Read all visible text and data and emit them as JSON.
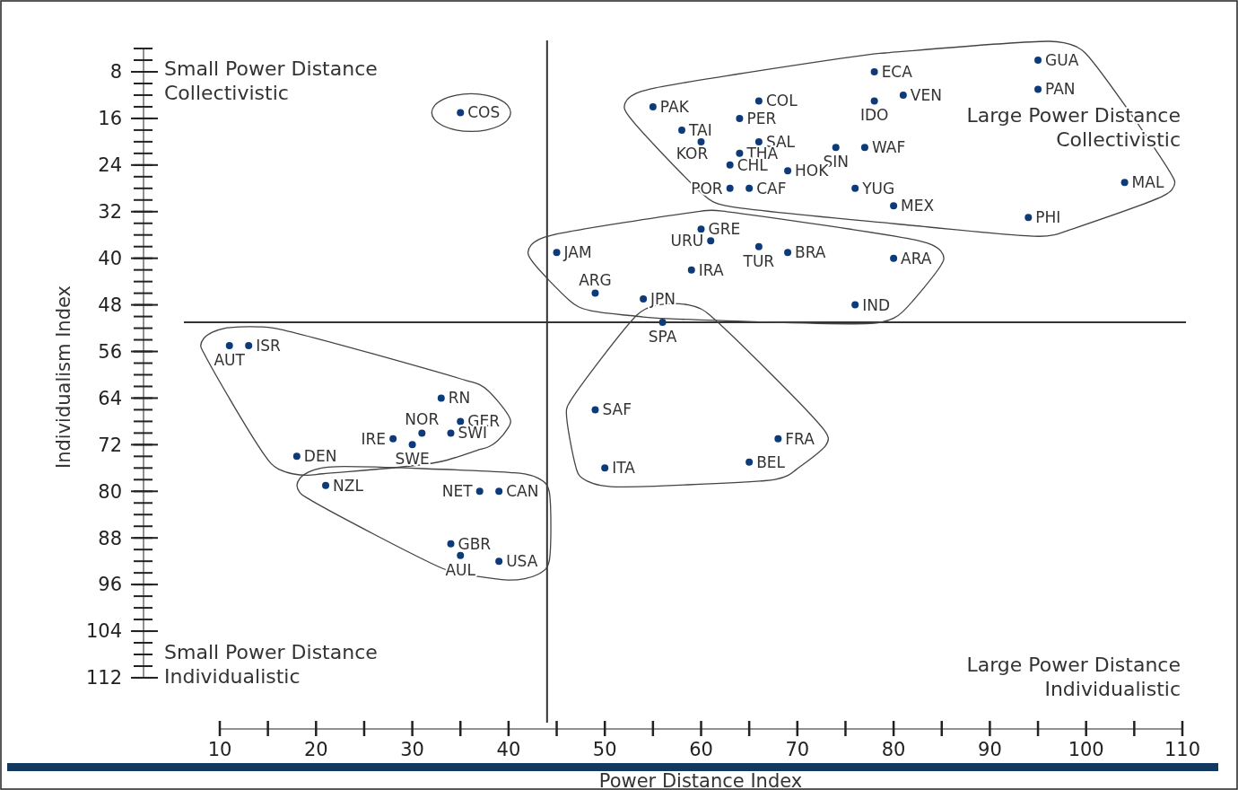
{
  "chart_data": {
    "type": "scatter",
    "xlabel": "Power Distance Index",
    "ylabel": "Individualism Index",
    "xlim": [
      10,
      110
    ],
    "ylim": [
      112,
      4
    ],
    "xticks": [
      10,
      20,
      30,
      40,
      50,
      60,
      70,
      80,
      90,
      100,
      110
    ],
    "yticks": [
      8,
      16,
      24,
      32,
      40,
      48,
      56,
      64,
      72,
      80,
      88,
      96,
      104,
      112
    ],
    "grid": false,
    "marker": "circle",
    "ref_lines": [
      {
        "axis": "x",
        "value": 44,
        "label": null,
        "color": "#333333"
      },
      {
        "axis": "y",
        "value": 51,
        "label": null,
        "color": "#333333"
      }
    ],
    "annotations": [
      "Small Power Distance\nCollectivistic",
      "Large Power Distance\nCollectivistic",
      "Small Power Distance\nIndividualistic",
      "Large Power Distance\nIndividualistic"
    ],
    "series": [
      {
        "name": "GUA",
        "color": "#0d3b7a",
        "x": [
          95
        ],
        "values": [
          6
        ]
      },
      {
        "name": "PAN",
        "color": "#0d3b7a",
        "x": [
          95
        ],
        "values": [
          11
        ]
      },
      {
        "name": "ECA",
        "color": "#0d3b7a",
        "x": [
          78
        ],
        "values": [
          8
        ]
      },
      {
        "name": "VEN",
        "color": "#0d3b7a",
        "x": [
          81
        ],
        "values": [
          12
        ]
      },
      {
        "name": "IDO",
        "color": "#0d3b7a",
        "x": [
          78
        ],
        "values": [
          13
        ]
      },
      {
        "name": "COL",
        "color": "#0d3b7a",
        "x": [
          66
        ],
        "values": [
          13
        ]
      },
      {
        "name": "PAK",
        "color": "#0d3b7a",
        "x": [
          55
        ],
        "values": [
          14
        ]
      },
      {
        "name": "COS",
        "color": "#0d3b7a",
        "x": [
          35
        ],
        "values": [
          15
        ]
      },
      {
        "name": "PER",
        "color": "#0d3b7a",
        "x": [
          64
        ],
        "values": [
          16
        ]
      },
      {
        "name": "TAI",
        "color": "#0d3b7a",
        "x": [
          58
        ],
        "values": [
          18
        ]
      },
      {
        "name": "SAL",
        "color": "#0d3b7a",
        "x": [
          66
        ],
        "values": [
          20
        ]
      },
      {
        "name": "KOR",
        "color": "#0d3b7a",
        "x": [
          60
        ],
        "values": [
          20
        ]
      },
      {
        "name": "SIN",
        "color": "#0d3b7a",
        "x": [
          74
        ],
        "values": [
          21
        ]
      },
      {
        "name": "WAF",
        "color": "#0d3b7a",
        "x": [
          77
        ],
        "values": [
          21
        ]
      },
      {
        "name": "THA",
        "color": "#0d3b7a",
        "x": [
          64
        ],
        "values": [
          22
        ]
      },
      {
        "name": "CHL",
        "color": "#0d3b7a",
        "x": [
          63
        ],
        "values": [
          24
        ]
      },
      {
        "name": "HOK",
        "color": "#0d3b7a",
        "x": [
          69
        ],
        "values": [
          25
        ]
      },
      {
        "name": "POR",
        "color": "#0d3b7a",
        "x": [
          63
        ],
        "values": [
          28
        ]
      },
      {
        "name": "CAF",
        "color": "#0d3b7a",
        "x": [
          65
        ],
        "values": [
          28
        ]
      },
      {
        "name": "YUG",
        "color": "#0d3b7a",
        "x": [
          76
        ],
        "values": [
          28
        ]
      },
      {
        "name": "MAL",
        "color": "#0d3b7a",
        "x": [
          104
        ],
        "values": [
          27
        ]
      },
      {
        "name": "MEX",
        "color": "#0d3b7a",
        "x": [
          80
        ],
        "values": [
          31
        ]
      },
      {
        "name": "PHI",
        "color": "#0d3b7a",
        "x": [
          94
        ],
        "values": [
          33
        ]
      },
      {
        "name": "GRE",
        "color": "#0d3b7a",
        "x": [
          60
        ],
        "values": [
          35
        ]
      },
      {
        "name": "URU",
        "color": "#0d3b7a",
        "x": [
          61
        ],
        "values": [
          37
        ]
      },
      {
        "name": "TUR",
        "color": "#0d3b7a",
        "x": [
          66
        ],
        "values": [
          38
        ]
      },
      {
        "name": "BRA",
        "color": "#0d3b7a",
        "x": [
          69
        ],
        "values": [
          39
        ]
      },
      {
        "name": "ARA",
        "color": "#0d3b7a",
        "x": [
          80
        ],
        "values": [
          40
        ]
      },
      {
        "name": "JAM",
        "color": "#0d3b7a",
        "x": [
          45
        ],
        "values": [
          39
        ]
      },
      {
        "name": "IRA",
        "color": "#0d3b7a",
        "x": [
          59
        ],
        "values": [
          42
        ]
      },
      {
        "name": "ARG",
        "color": "#0d3b7a",
        "x": [
          49
        ],
        "values": [
          46
        ]
      },
      {
        "name": "JPN",
        "color": "#0d3b7a",
        "x": [
          54
        ],
        "values": [
          47
        ]
      },
      {
        "name": "IND",
        "color": "#0d3b7a",
        "x": [
          76
        ],
        "values": [
          48
        ]
      },
      {
        "name": "SPA",
        "color": "#0d3b7a",
        "x": [
          56
        ],
        "values": [
          51
        ]
      },
      {
        "name": "ISR",
        "color": "#0d3b7a",
        "x": [
          13
        ],
        "values": [
          55
        ]
      },
      {
        "name": "AUT",
        "color": "#0d3b7a",
        "x": [
          11
        ],
        "values": [
          55
        ]
      },
      {
        "name": "RN",
        "color": "#0d3b7a",
        "x": [
          33
        ],
        "values": [
          64
        ]
      },
      {
        "name": "SAF",
        "color": "#0d3b7a",
        "x": [
          49
        ],
        "values": [
          66
        ]
      },
      {
        "name": "GER",
        "color": "#0d3b7a",
        "x": [
          35
        ],
        "values": [
          68
        ]
      },
      {
        "name": "NOR",
        "color": "#0d3b7a",
        "x": [
          31
        ],
        "values": [
          70
        ]
      },
      {
        "name": "SWI",
        "color": "#0d3b7a",
        "x": [
          34
        ],
        "values": [
          70
        ]
      },
      {
        "name": "IRE",
        "color": "#0d3b7a",
        "x": [
          28
        ],
        "values": [
          71
        ]
      },
      {
        "name": "SWE",
        "color": "#0d3b7a",
        "x": [
          30
        ],
        "values": [
          72
        ]
      },
      {
        "name": "FRA",
        "color": "#0d3b7a",
        "x": [
          68
        ],
        "values": [
          71
        ]
      },
      {
        "name": "DEN",
        "color": "#0d3b7a",
        "x": [
          18
        ],
        "values": [
          74
        ]
      },
      {
        "name": "BEL",
        "color": "#0d3b7a",
        "x": [
          65
        ],
        "values": [
          75
        ]
      },
      {
        "name": "ITA",
        "color": "#0d3b7a",
        "x": [
          50
        ],
        "values": [
          76
        ]
      },
      {
        "name": "NZL",
        "color": "#0d3b7a",
        "x": [
          21
        ],
        "values": [
          79
        ]
      },
      {
        "name": "NET",
        "color": "#0d3b7a",
        "x": [
          37
        ],
        "values": [
          80
        ]
      },
      {
        "name": "CAN",
        "color": "#0d3b7a",
        "x": [
          39
        ],
        "values": [
          80
        ]
      },
      {
        "name": "GBR",
        "color": "#0d3b7a",
        "x": [
          34
        ],
        "values": [
          89
        ]
      },
      {
        "name": "AUL",
        "color": "#0d3b7a",
        "x": [
          35
        ],
        "values": [
          91
        ]
      },
      {
        "name": "USA",
        "color": "#0d3b7a",
        "x": [
          39
        ],
        "values": [
          92
        ]
      }
    ]
  }
}
